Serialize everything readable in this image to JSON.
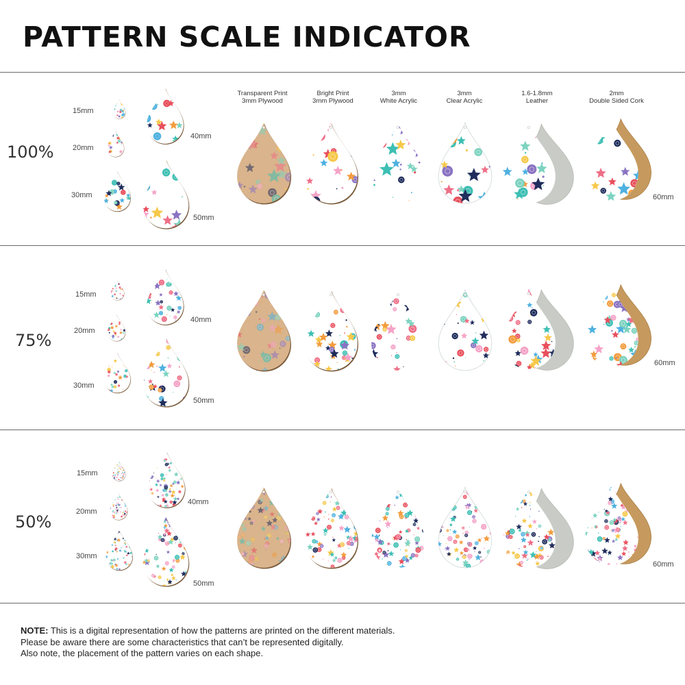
{
  "title": "PATTERN SCALE INDICATOR",
  "materials": [
    {
      "line1": "Transparent Print",
      "line2": "3mm Plywood",
      "style": "plywood"
    },
    {
      "line1": "Bright Print",
      "line2": "3mm Plywood",
      "style": "bright"
    },
    {
      "line1": "3mm",
      "line2": "White Acrylic",
      "style": "white"
    },
    {
      "line1": "3mm",
      "line2": "Clear Acrylic",
      "style": "clear"
    },
    {
      "line1": "1.6-1.8mm",
      "line2": "Leather",
      "style": "leather"
    },
    {
      "line1": "2mm",
      "line2": "Double Sided Cork",
      "style": "cork"
    }
  ],
  "sections": [
    {
      "scale": "100%",
      "sizes": [
        "15mm",
        "20mm",
        "30mm",
        "40mm",
        "50mm"
      ],
      "main_size": "60mm",
      "density": 1.0
    },
    {
      "scale": "75%",
      "sizes": [
        "15mm",
        "20mm",
        "30mm",
        "40mm",
        "50mm"
      ],
      "main_size": "60mm",
      "density": 1.33
    },
    {
      "scale": "50%",
      "sizes": [
        "15mm",
        "20mm",
        "30mm",
        "40mm",
        "50mm"
      ],
      "main_size": "60mm",
      "density": 2.0
    }
  ],
  "palette": [
    "#f6c84a",
    "#1f2d5c",
    "#3ebfb4",
    "#ee6f87",
    "#8a73c2",
    "#f39c3d",
    "#4fb1e0",
    "#e84f5c",
    "#7dd3c0",
    "#f5a3c7"
  ],
  "note": {
    "label": "NOTE:",
    "line1": " This is a digital representation of how the patterns are printed on the different materials.",
    "line2": "Please be aware there are some characteristics that can’t be represented digitally.",
    "line3": "Also note, the placement of the pattern varies on each shape."
  }
}
